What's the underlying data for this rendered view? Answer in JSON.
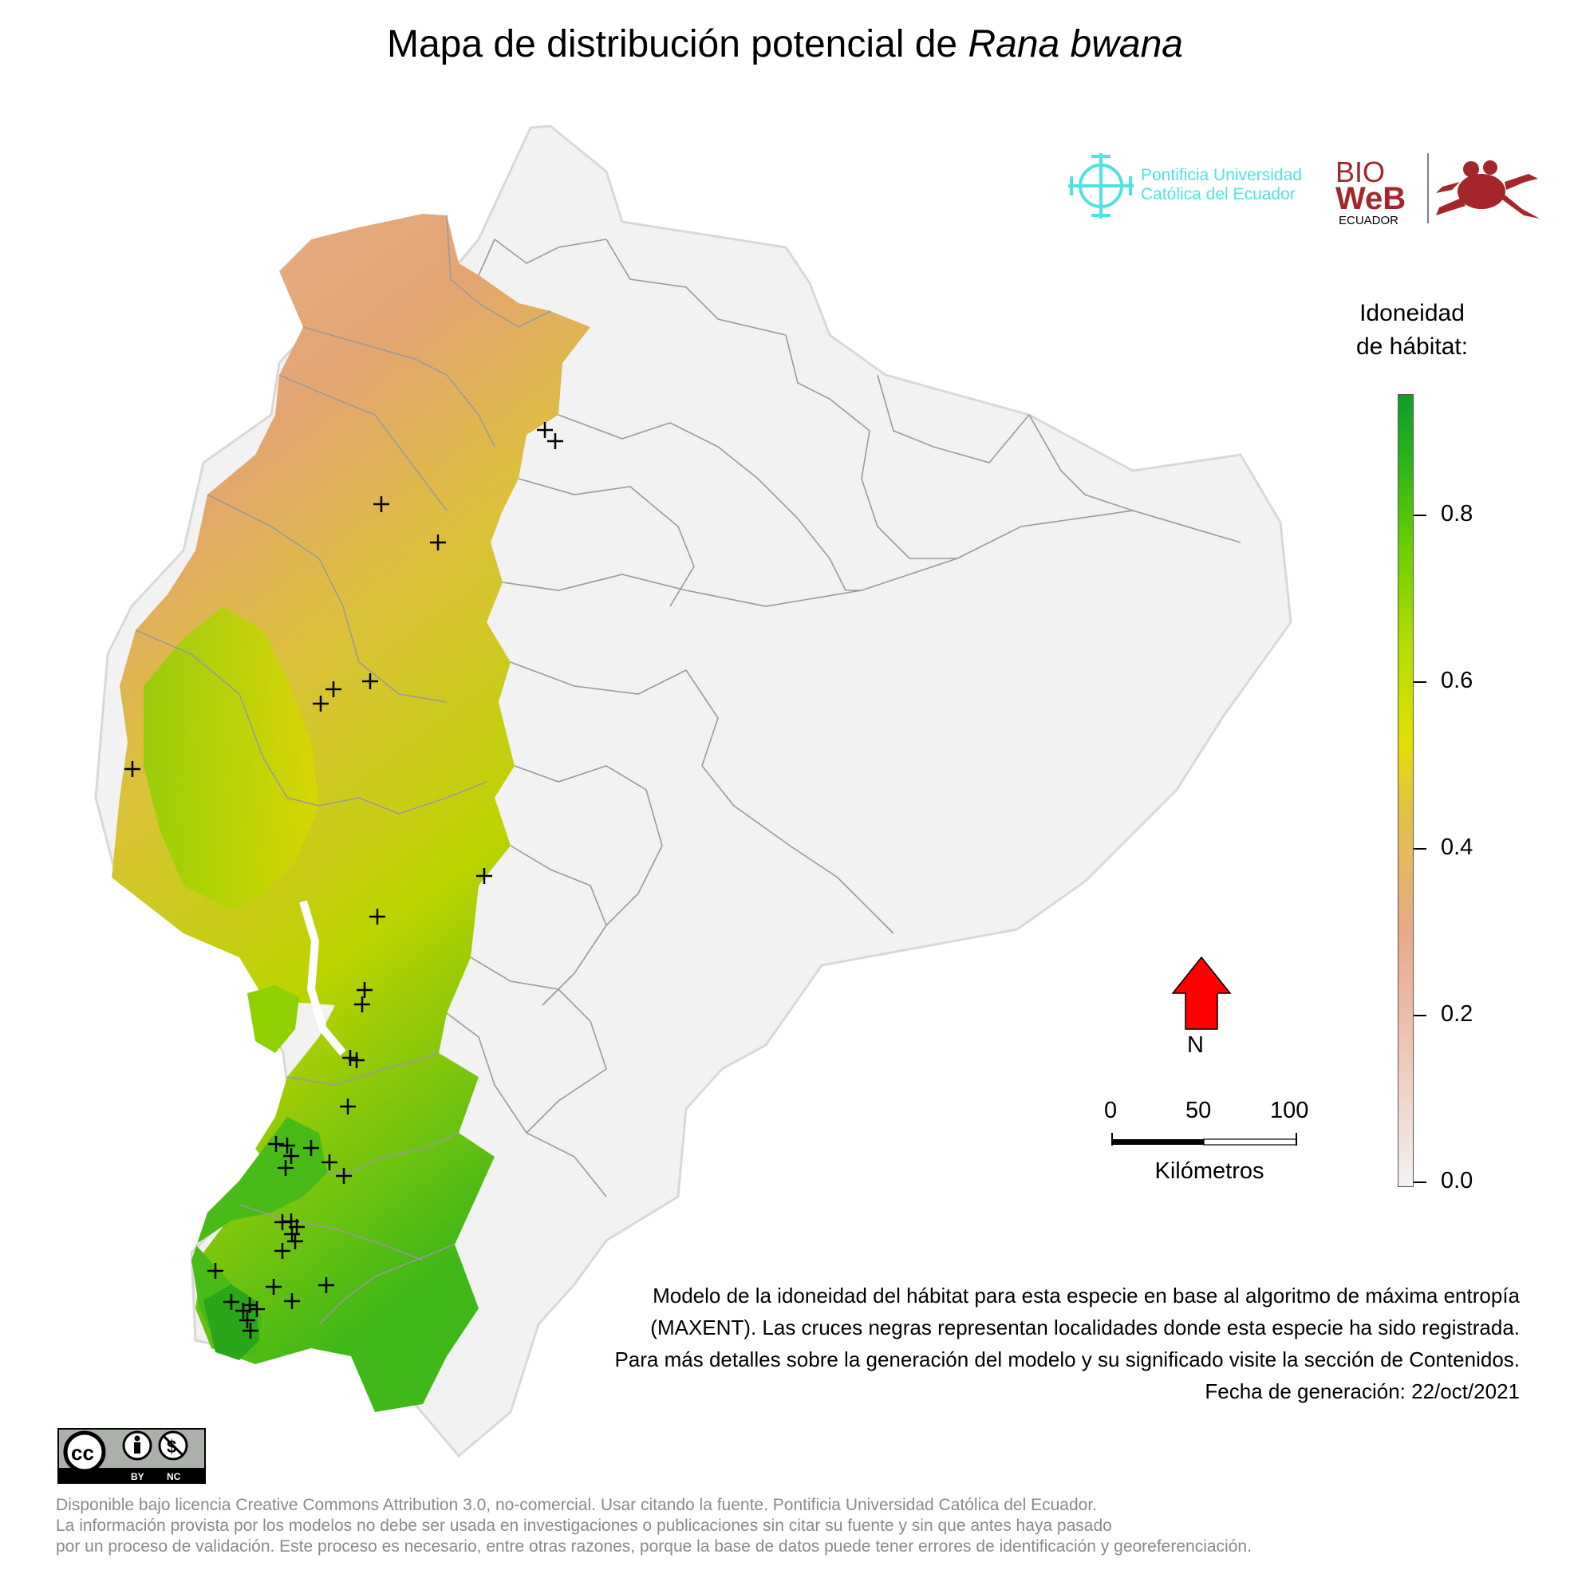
{
  "map": {
    "title_prefix": "Mapa de distribución potencial de ",
    "title_species": "Rana bwana",
    "legend": {
      "title_line1": "Idoneidad",
      "title_line2": "de hábitat:",
      "ticks": [
        "0.8",
        "0.6",
        "0.4",
        "0.2",
        "0.0"
      ],
      "range": [
        0.0,
        0.95
      ],
      "colors": [
        "#f2f2f2",
        "#e8a98a",
        "#e4e100",
        "#6ed000",
        "#0e9e2a"
      ]
    },
    "north_label": "N",
    "scale": {
      "labels": [
        "0",
        "50",
        "100"
      ],
      "unit": "Kilómetros"
    },
    "description": "Modelo de la idoneidad del hábitat para esta especie en base al algoritmo de máxima entropía (MAXENT). Las cruces negras representan localidades donde esta especie ha sido registrada. Para más detalles sobre la generación del modelo y su significado visite la sección de Contenidos. Fecha de generación: 22/oct/2021"
  },
  "logos": {
    "puce_line1": "Pontificia Universidad",
    "puce_line2": "Católica del Ecuador",
    "bioweb_bio": "BIO",
    "bioweb_web": "WeB",
    "bioweb_ecuador": "ECUADOR",
    "cc_by": "BY",
    "cc_nc": "NC"
  },
  "footer": {
    "line1": "Disponible bajo licencia Creative Commons Attribution 3.0, no-comercial. Usar citando la fuente. Pontificia Universidad Católica del Ecuador.",
    "line2": "La información provista por los modelos no debe ser usada en investigaciones o publicaciones sin citar su fuente y sin que antes haya pasado",
    "line3": "por un proceso de validación. Este proceso es necesario, entre otras razones, porque la base de datos puede tener errores de identificación y georeferenciación."
  }
}
